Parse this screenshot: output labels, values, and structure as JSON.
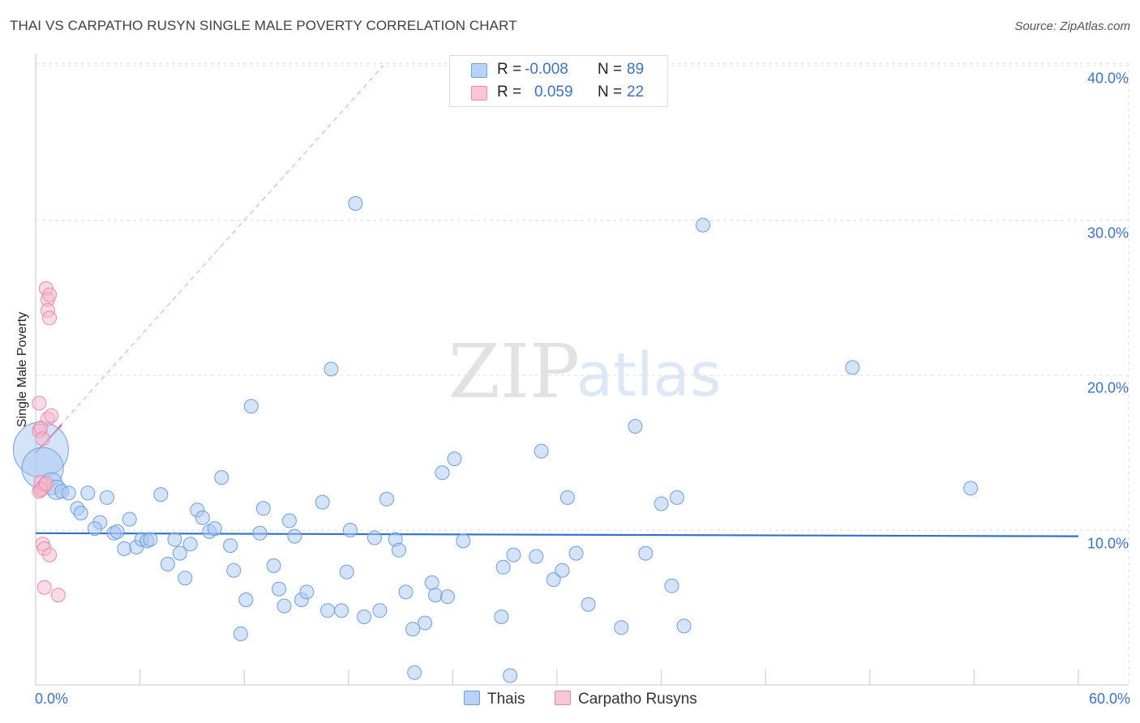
{
  "title": "THAI VS CARPATHO RUSYN SINGLE MALE POVERTY CORRELATION CHART",
  "source": "Source: ZipAtlas.com",
  "watermark": {
    "zip": "ZIP",
    "atlas": "atlas"
  },
  "colors": {
    "thais_fill": "#a9c8f2",
    "thais_stroke": "#6e9fe0",
    "thais_line": "#2f6fcf",
    "rusyn_fill": "#f6b7cb",
    "rusyn_stroke": "#e98aab",
    "rusyn_line": "#e2648e",
    "grid": "#dddddd",
    "axis_text": "#3b73c4"
  },
  "stats": [
    {
      "r_label": "R =",
      "r_value": "-0.008",
      "n_label": "N =",
      "n_value": "89"
    },
    {
      "r_label": "R =",
      "r_value": "0.059",
      "n_label": "N =",
      "n_value": "22"
    }
  ],
  "legend": {
    "thais": "Thais",
    "rusyn": "Carpatho Rusyns"
  },
  "chart_data": {
    "type": "scatter",
    "title": "THAI VS CARPATHO RUSYN SINGLE MALE POVERTY CORRELATION CHART",
    "xlabel": "",
    "ylabel": "Single Male Poverty",
    "xlim": [
      0,
      60
    ],
    "ylim": [
      0,
      40
    ],
    "x_tick_labels": [
      "0.0%",
      "60.0%"
    ],
    "y_ticks": [
      10,
      20,
      30,
      40
    ],
    "y_tick_labels": [
      "10.0%",
      "20.0%",
      "30.0%",
      "40.0%"
    ],
    "legend_position": "bottom-center",
    "series": [
      {
        "name": "Thais",
        "r": -0.008,
        "n": 89,
        "trend": {
          "x0": 0,
          "y0": 9.8,
          "x1": 60,
          "y1": 9.6
        },
        "points": [
          [
            0.3,
            15.2,
            4.0
          ],
          [
            0.4,
            14.0,
            3.0
          ],
          [
            0.9,
            13.0,
            1.6
          ],
          [
            1.2,
            12.6,
            1.4
          ],
          [
            1.5,
            12.5,
            1.0
          ],
          [
            1.9,
            12.4,
            1.0
          ],
          [
            3.0,
            12.4,
            1.0
          ],
          [
            2.4,
            11.4,
            1.0
          ],
          [
            2.6,
            11.1,
            1.0
          ],
          [
            3.7,
            10.5,
            1.0
          ],
          [
            3.4,
            10.1,
            1.0
          ],
          [
            4.1,
            12.1,
            1.0
          ],
          [
            4.5,
            9.8,
            1.0
          ],
          [
            4.7,
            9.9,
            1.0
          ],
          [
            5.4,
            10.7,
            1.0
          ],
          [
            5.1,
            8.8,
            1.0
          ],
          [
            5.8,
            8.9,
            1.0
          ],
          [
            6.1,
            9.4,
            1.0
          ],
          [
            6.4,
            9.3,
            1.0
          ],
          [
            6.6,
            9.4,
            1.0
          ],
          [
            7.2,
            12.3,
            1.0
          ],
          [
            7.6,
            7.8,
            1.0
          ],
          [
            8.0,
            9.4,
            1.0
          ],
          [
            8.3,
            8.5,
            1.0
          ],
          [
            8.6,
            6.9,
            1.0
          ],
          [
            8.9,
            9.1,
            1.0
          ],
          [
            9.3,
            11.3,
            1.0
          ],
          [
            9.6,
            10.8,
            1.0
          ],
          [
            10.0,
            9.9,
            1.0
          ],
          [
            10.3,
            10.1,
            1.0
          ],
          [
            10.7,
            13.4,
            1.0
          ],
          [
            11.2,
            9.0,
            1.0
          ],
          [
            11.4,
            7.4,
            1.0
          ],
          [
            12.1,
            5.5,
            1.0
          ],
          [
            11.8,
            3.3,
            1.0
          ],
          [
            12.4,
            18.0,
            1.0
          ],
          [
            12.9,
            9.8,
            1.0
          ],
          [
            13.1,
            11.4,
            1.0
          ],
          [
            13.7,
            7.7,
            1.0
          ],
          [
            14.0,
            6.2,
            1.0
          ],
          [
            14.3,
            5.1,
            1.0
          ],
          [
            14.6,
            10.6,
            1.0
          ],
          [
            14.9,
            9.6,
            1.0
          ],
          [
            15.3,
            5.5,
            1.0
          ],
          [
            15.6,
            6.0,
            1.0
          ],
          [
            16.5,
            11.8,
            1.0
          ],
          [
            16.8,
            4.8,
            1.0
          ],
          [
            17.0,
            20.4,
            1.0
          ],
          [
            17.6,
            4.8,
            1.0
          ],
          [
            17.9,
            7.3,
            1.0
          ],
          [
            18.1,
            10.0,
            1.0
          ],
          [
            18.4,
            31.1,
            1.0
          ],
          [
            18.9,
            4.4,
            1.0
          ],
          [
            19.5,
            9.5,
            1.0
          ],
          [
            19.8,
            4.8,
            1.0
          ],
          [
            20.2,
            12.0,
            1.0
          ],
          [
            20.7,
            9.4,
            1.0
          ],
          [
            20.9,
            8.7,
            1.0
          ],
          [
            21.3,
            6.0,
            1.0
          ],
          [
            21.7,
            3.6,
            1.0
          ],
          [
            21.8,
            0.8,
            1.0
          ],
          [
            22.4,
            4.0,
            1.0
          ],
          [
            22.8,
            6.6,
            1.0
          ],
          [
            23.0,
            5.8,
            1.0
          ],
          [
            23.4,
            13.7,
            1.0
          ],
          [
            23.7,
            5.7,
            1.0
          ],
          [
            24.1,
            14.6,
            1.0
          ],
          [
            24.6,
            9.3,
            1.0
          ],
          [
            26.8,
            4.4,
            1.0
          ],
          [
            26.9,
            7.6,
            1.0
          ],
          [
            27.3,
            0.6,
            1.0
          ],
          [
            27.5,
            8.4,
            1.0
          ],
          [
            28.8,
            8.3,
            1.0
          ],
          [
            29.1,
            15.1,
            1.0
          ],
          [
            29.8,
            6.8,
            1.0
          ],
          [
            30.3,
            7.4,
            1.0
          ],
          [
            30.6,
            12.1,
            1.0
          ],
          [
            31.1,
            8.5,
            1.0
          ],
          [
            31.8,
            5.2,
            1.0
          ],
          [
            33.7,
            3.7,
            1.0
          ],
          [
            34.5,
            16.7,
            1.0
          ],
          [
            35.1,
            8.5,
            1.0
          ],
          [
            36.0,
            11.7,
            1.0
          ],
          [
            36.6,
            6.4,
            1.0
          ],
          [
            36.9,
            12.1,
            1.0
          ],
          [
            37.3,
            3.8,
            1.0
          ],
          [
            38.4,
            29.7,
            1.0
          ],
          [
            47.0,
            20.5,
            1.0
          ],
          [
            53.8,
            12.7,
            1.0
          ]
        ]
      },
      {
        "name": "Carpatho Rusyns",
        "r": 0.059,
        "n": 22,
        "trend": {
          "x0": 0,
          "y0": 15.0,
          "x1": 1.5,
          "y1": 16.8
        },
        "trend_extended": {
          "x0": 0,
          "y0": 15.0,
          "x1": 20,
          "y1": 40.0
        },
        "points": [
          [
            0.2,
            12.5,
            1.0
          ],
          [
            0.3,
            13.1,
            1.0
          ],
          [
            0.4,
            12.7,
            1.0
          ],
          [
            0.5,
            12.9,
            1.0
          ],
          [
            0.3,
            12.6,
            1.0
          ],
          [
            0.6,
            13.0,
            1.0
          ],
          [
            0.2,
            16.4,
            1.0
          ],
          [
            0.3,
            16.6,
            1.0
          ],
          [
            0.4,
            15.9,
            1.0
          ],
          [
            0.7,
            17.2,
            1.0
          ],
          [
            0.9,
            17.4,
            1.0
          ],
          [
            0.2,
            18.2,
            1.0
          ],
          [
            0.6,
            25.6,
            1.0
          ],
          [
            0.7,
            24.9,
            1.0
          ],
          [
            0.7,
            24.2,
            1.0
          ],
          [
            0.8,
            23.7,
            1.0
          ],
          [
            0.8,
            25.2,
            1.0
          ],
          [
            0.4,
            9.1,
            1.0
          ],
          [
            0.5,
            8.8,
            1.0
          ],
          [
            0.8,
            8.4,
            1.0
          ],
          [
            0.5,
            6.3,
            1.0
          ],
          [
            1.3,
            5.8,
            1.0
          ]
        ]
      }
    ]
  }
}
